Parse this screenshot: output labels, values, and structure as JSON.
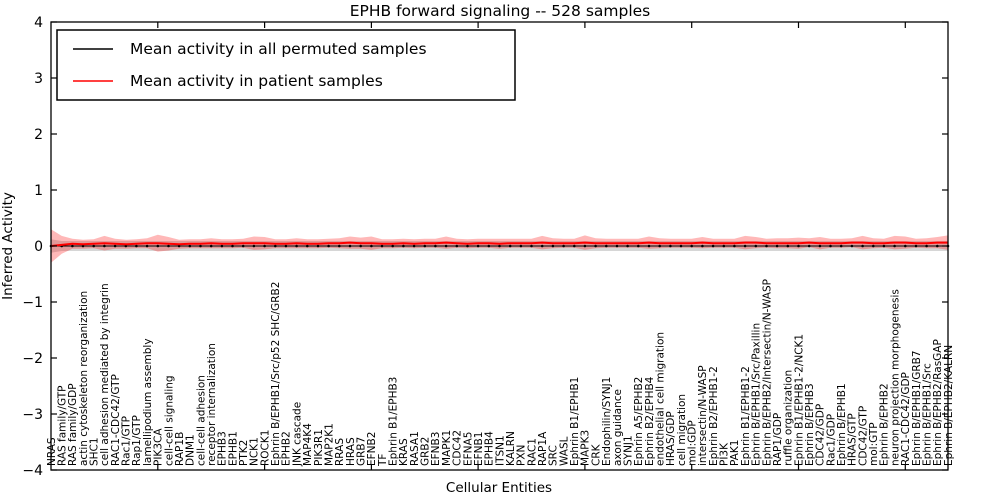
{
  "figure": {
    "background": "#ffffff",
    "frame_color": "#000000"
  },
  "chart_data": {
    "type": "line",
    "title": "EPHB forward signaling -- 528 samples",
    "xlabel": "Cellular Entities",
    "ylabel": "Inferred Activity",
    "ylim": [
      -4,
      4
    ],
    "yticks": [
      4,
      3,
      2,
      1,
      0,
      -1,
      -2,
      -3,
      -4
    ],
    "grid": false,
    "legend": {
      "position": "upper left",
      "border_color": "#000000",
      "background": "#ffffff"
    },
    "categories": [
      "NRAS",
      "RAS family/GTP",
      "RAS family/GDP",
      "actin cytoskeleton reorganization",
      "SHC1",
      "cell adhesion mediated by integrin",
      "RAC1-CDC42/GTP",
      "Rac1/GTP",
      "Rap1/GTP",
      "lamellipodium assembly",
      "PIK3CA",
      "cell-cell signaling",
      "RAP1B",
      "DNM1",
      "cell-cell adhesion",
      "receptor internalization",
      "EPHB3",
      "EPHB1",
      "PTK2",
      "NCK1",
      "ROCK1",
      "Ephrin B/EPHB1/Src/p52 SHC/GRB2",
      "EPHB2",
      "JNK cascade",
      "MAP4K4",
      "PIK3R1",
      "MAP2K1",
      "RRAS",
      "HRAS",
      "GRB7",
      "EFNB2",
      "TF",
      "Ephrin B1/EPHB3",
      "KRAS",
      "RASA1",
      "GRB2",
      "EFNB3",
      "MAPK1",
      "CDC42",
      "EFNA5",
      "EFNB1",
      "EPHB4",
      "ITSN1",
      "KALRN",
      "PXN",
      "RAC1",
      "RAP1A",
      "SRC",
      "WASL",
      "Ephrin B1/EPHB1",
      "MAPK3",
      "CRK",
      "Endophilin/SYNJ1",
      "axon guidance",
      "SYNJ1",
      "Ephrin A5/EPHB2",
      "Ephrin B2/EPHB4",
      "endothelial cell migration",
      "HRAS/GDP",
      "cell migration",
      "mol:GDP",
      "intersectin/N-WASP",
      "Ephrin B2/EPHB1-2",
      "PI3K",
      "PAK1",
      "Ephrin B1/EPHB1-2",
      "Ephrin B/EPHB1/Src/Paxillin",
      "Ephrin B/EPHB2/Intersectin/N-WASP",
      "RAP1/GDP",
      "ruffle organization",
      "Ephrin B1/EPHB1-2/NCK1",
      "Ephrin B/EPHB3",
      "CDC42/GDP",
      "Rac1/GDP",
      "Ephrin B/EPHB1",
      "HRAS/GTP",
      "CDC42/GTP",
      "mol:GTP",
      "Ephrin B/EPHB2",
      "neuron projection morphogenesis",
      "RAC1-CDC42/GDP",
      "Ephrin B/EPHB1/GRB7",
      "Ephrin B/EPHB1/Src",
      "Ephrin B/EPHB2/RasGAP",
      "Ephrin B/EPHB2/KALRN"
    ],
    "series": [
      {
        "name": "Mean activity in all permuted samples",
        "color": "#000000",
        "band_color": "rgba(0,0,0,0.16)",
        "marker": "dot",
        "values": [
          0,
          0,
          0,
          0,
          0,
          0,
          0,
          0,
          0,
          0,
          0,
          0,
          0,
          0,
          0,
          0,
          0,
          0,
          0,
          0,
          0,
          0,
          0,
          0,
          0,
          0,
          0,
          0,
          0,
          0,
          0,
          0,
          0,
          0,
          0,
          0,
          0,
          0,
          0,
          0,
          0,
          0,
          0,
          0,
          0,
          0,
          0,
          0,
          0,
          0,
          0,
          0,
          0,
          0,
          0,
          0,
          0,
          0,
          0,
          0,
          0,
          0,
          0,
          0,
          0,
          0,
          0,
          0,
          0,
          0,
          0,
          0,
          0,
          0,
          0,
          0,
          0,
          0,
          0,
          0,
          0,
          0,
          0,
          0,
          0
        ],
        "band": [
          0.12,
          0.09,
          0.09,
          0.09,
          0.09,
          0.09,
          0.09,
          0.09,
          0.09,
          0.09,
          0.09,
          0.09,
          0.09,
          0.09,
          0.09,
          0.09,
          0.09,
          0.09,
          0.09,
          0.09,
          0.09,
          0.09,
          0.09,
          0.09,
          0.09,
          0.09,
          0.09,
          0.09,
          0.09,
          0.09,
          0.09,
          0.09,
          0.09,
          0.09,
          0.09,
          0.09,
          0.09,
          0.09,
          0.09,
          0.09,
          0.09,
          0.09,
          0.09,
          0.09,
          0.09,
          0.09,
          0.09,
          0.09,
          0.09,
          0.09,
          0.09,
          0.09,
          0.09,
          0.09,
          0.09,
          0.09,
          0.09,
          0.09,
          0.09,
          0.09,
          0.09,
          0.09,
          0.09,
          0.09,
          0.09,
          0.09,
          0.09,
          0.09,
          0.09,
          0.09,
          0.09,
          0.09,
          0.09,
          0.09,
          0.09,
          0.09,
          0.09,
          0.09,
          0.09,
          0.09,
          0.09,
          0.09,
          0.09,
          0.09,
          0.09
        ]
      },
      {
        "name": "Mean activity in patient samples",
        "color": "#ff0000",
        "band_color": "rgba(255,0,0,0.28)",
        "marker": "none",
        "values": [
          0.0,
          0.02,
          0.04,
          0.03,
          0.04,
          0.05,
          0.04,
          0.03,
          0.04,
          0.05,
          0.05,
          0.04,
          0.03,
          0.04,
          0.04,
          0.05,
          0.04,
          0.04,
          0.05,
          0.05,
          0.05,
          0.04,
          0.04,
          0.05,
          0.04,
          0.04,
          0.05,
          0.05,
          0.06,
          0.05,
          0.05,
          0.04,
          0.04,
          0.05,
          0.04,
          0.05,
          0.05,
          0.06,
          0.05,
          0.04,
          0.05,
          0.05,
          0.04,
          0.05,
          0.05,
          0.05,
          0.06,
          0.05,
          0.05,
          0.05,
          0.06,
          0.05,
          0.05,
          0.05,
          0.05,
          0.05,
          0.06,
          0.05,
          0.05,
          0.05,
          0.05,
          0.06,
          0.05,
          0.05,
          0.05,
          0.06,
          0.06,
          0.05,
          0.05,
          0.05,
          0.05,
          0.06,
          0.05,
          0.05,
          0.05,
          0.06,
          0.06,
          0.05,
          0.05,
          0.06,
          0.06,
          0.05,
          0.05,
          0.06,
          0.06
        ],
        "band": [
          0.3,
          0.16,
          0.09,
          0.08,
          0.08,
          0.13,
          0.09,
          0.08,
          0.08,
          0.09,
          0.15,
          0.12,
          0.08,
          0.08,
          0.08,
          0.09,
          0.08,
          0.08,
          0.08,
          0.12,
          0.11,
          0.08,
          0.08,
          0.09,
          0.08,
          0.08,
          0.08,
          0.09,
          0.11,
          0.1,
          0.12,
          0.08,
          0.08,
          0.08,
          0.08,
          0.08,
          0.08,
          0.11,
          0.08,
          0.08,
          0.08,
          0.08,
          0.09,
          0.08,
          0.08,
          0.08,
          0.12,
          0.09,
          0.08,
          0.08,
          0.13,
          0.09,
          0.08,
          0.08,
          0.08,
          0.08,
          0.11,
          0.09,
          0.08,
          0.08,
          0.08,
          0.1,
          0.08,
          0.08,
          0.08,
          0.12,
          0.1,
          0.08,
          0.09,
          0.09,
          0.1,
          0.08,
          0.11,
          0.08,
          0.08,
          0.08,
          0.12,
          0.09,
          0.08,
          0.12,
          0.11,
          0.08,
          0.09,
          0.1,
          0.13
        ]
      }
    ]
  }
}
